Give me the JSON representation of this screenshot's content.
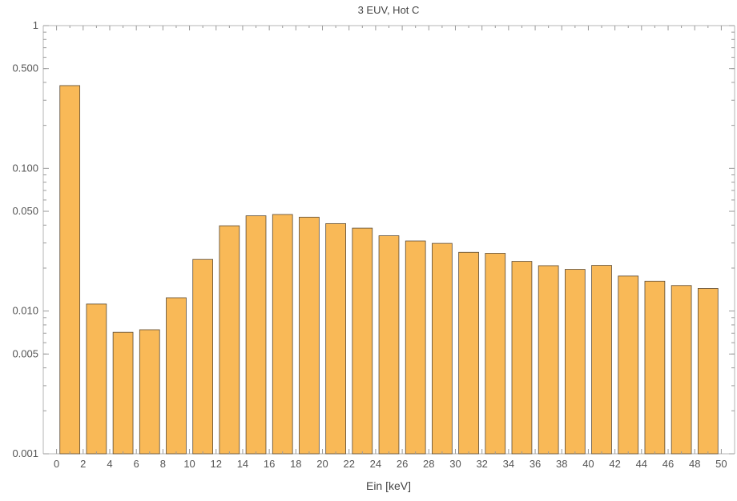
{
  "chart_data": {
    "type": "bar",
    "title": "3 EUV, Hot C",
    "xlabel": "Ein [keV]",
    "ylabel": "",
    "yscale": "log",
    "ylim": [
      0.001,
      1
    ],
    "xlim": [
      -1,
      51
    ],
    "bin_width": 2,
    "x_ticks": [
      "0",
      "2",
      "4",
      "6",
      "8",
      "10",
      "12",
      "14",
      "16",
      "18",
      "20",
      "22",
      "24",
      "26",
      "28",
      "30",
      "32",
      "34",
      "36",
      "38",
      "40",
      "42",
      "44",
      "46",
      "48",
      "50"
    ],
    "y_ticks": [
      {
        "value": 0.001,
        "label": "0.001"
      },
      {
        "value": 0.005,
        "label": "0.005"
      },
      {
        "value": 0.01,
        "label": "0.010"
      },
      {
        "value": 0.05,
        "label": "0.050"
      },
      {
        "value": 0.1,
        "label": "0.100"
      },
      {
        "value": 0.5,
        "label": "0.500"
      },
      {
        "value": 1,
        "label": "1"
      }
    ],
    "bins": [
      {
        "from": 0,
        "to": 2,
        "value": 0.38
      },
      {
        "from": 2,
        "to": 4,
        "value": 0.0112
      },
      {
        "from": 4,
        "to": 6,
        "value": 0.0071
      },
      {
        "from": 6,
        "to": 8,
        "value": 0.0074
      },
      {
        "from": 8,
        "to": 10,
        "value": 0.0124
      },
      {
        "from": 10,
        "to": 12,
        "value": 0.023
      },
      {
        "from": 12,
        "to": 14,
        "value": 0.0396
      },
      {
        "from": 14,
        "to": 16,
        "value": 0.0465
      },
      {
        "from": 16,
        "to": 18,
        "value": 0.0475
      },
      {
        "from": 18,
        "to": 20,
        "value": 0.0455
      },
      {
        "from": 20,
        "to": 22,
        "value": 0.041
      },
      {
        "from": 22,
        "to": 24,
        "value": 0.0381
      },
      {
        "from": 24,
        "to": 26,
        "value": 0.0337
      },
      {
        "from": 26,
        "to": 28,
        "value": 0.031
      },
      {
        "from": 28,
        "to": 30,
        "value": 0.0298
      },
      {
        "from": 30,
        "to": 32,
        "value": 0.0258
      },
      {
        "from": 32,
        "to": 34,
        "value": 0.0254
      },
      {
        "from": 34,
        "to": 36,
        "value": 0.0223
      },
      {
        "from": 36,
        "to": 38,
        "value": 0.0208
      },
      {
        "from": 38,
        "to": 40,
        "value": 0.0196
      },
      {
        "from": 40,
        "to": 42,
        "value": 0.0209
      },
      {
        "from": 42,
        "to": 44,
        "value": 0.0176
      },
      {
        "from": 44,
        "to": 46,
        "value": 0.0162
      },
      {
        "from": 46,
        "to": 48,
        "value": 0.0151
      },
      {
        "from": 48,
        "to": 50,
        "value": 0.0144
      }
    ],
    "grid": false,
    "legend": "none",
    "colors": {
      "bar_fill": "#F9B957",
      "bar_stroke": "#5A4A35",
      "frame": "#B5B5B5",
      "tick": "#999999"
    }
  }
}
